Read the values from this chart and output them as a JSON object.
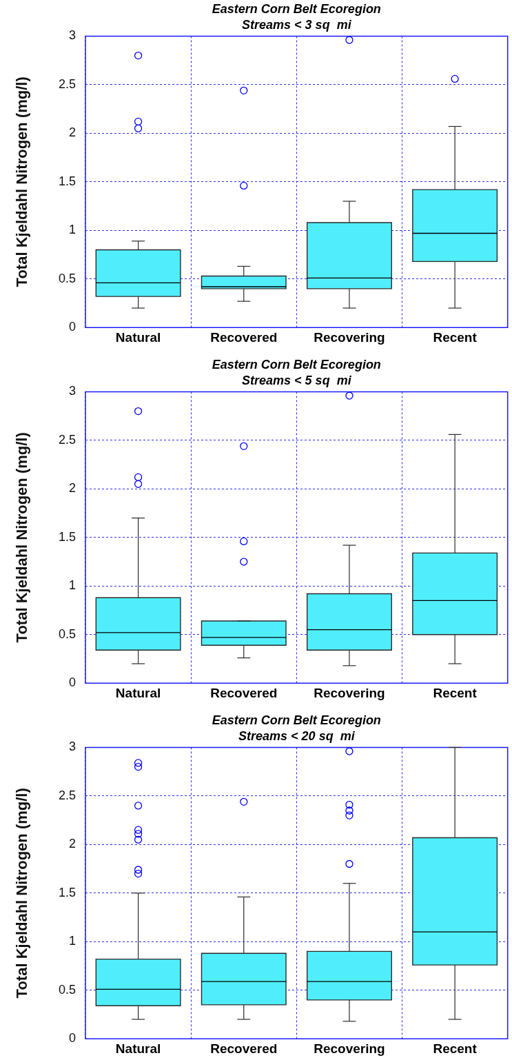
{
  "chart_data": [
    {
      "type": "box",
      "title": "Eastern Corn Belt Ecoregion",
      "subtitle": "Streams < 3 sq  mi",
      "ylabel": "Total Kjeldahl Nitrogen (mg/l)",
      "categories": [
        "Natural",
        "Recovered",
        "Recovering",
        "Recent"
      ],
      "color": "#50eefc",
      "boxes": [
        {
          "low": 0.2,
          "q1": 0.32,
          "median": 0.46,
          "q3": 0.8,
          "high": 0.89,
          "outliers": [
            2.8,
            2.12,
            2.05
          ]
        },
        {
          "low": 0.27,
          "q1": 0.4,
          "median": 0.42,
          "q3": 0.53,
          "high": 0.63,
          "outliers": [
            2.44,
            1.46
          ]
        },
        {
          "low": 0.2,
          "q1": 0.4,
          "median": 0.51,
          "q3": 1.08,
          "high": 1.3,
          "outliers": [
            2.96
          ]
        },
        {
          "low": 0.2,
          "q1": 0.68,
          "median": 0.97,
          "q3": 1.42,
          "high": 2.07,
          "outliers": [
            2.56
          ]
        }
      ],
      "ylim": [
        0,
        3
      ],
      "yticks": [
        0,
        0.5,
        1,
        1.5,
        2,
        2.5,
        3
      ],
      "grid": true
    },
    {
      "type": "box",
      "title": "Eastern Corn Belt Ecoregion",
      "subtitle": "Streams < 5 sq  mi",
      "ylabel": "Total Kjeldahl Nitrogen (mg/l)",
      "categories": [
        "Natural",
        "Recovered",
        "Recovering",
        "Recent"
      ],
      "color": "#50eefc",
      "boxes": [
        {
          "low": 0.2,
          "q1": 0.34,
          "median": 0.52,
          "q3": 0.88,
          "high": 1.7,
          "outliers": [
            2.8,
            2.12,
            2.05
          ]
        },
        {
          "low": 0.26,
          "q1": 0.39,
          "median": 0.47,
          "q3": 0.64,
          "high": 0.64,
          "outliers": [
            2.44,
            1.46,
            1.25
          ]
        },
        {
          "low": 0.18,
          "q1": 0.34,
          "median": 0.55,
          "q3": 0.92,
          "high": 1.42,
          "outliers": [
            2.96
          ]
        },
        {
          "low": 0.2,
          "q1": 0.5,
          "median": 0.85,
          "q3": 1.34,
          "high": 2.56
        }
      ],
      "ylim": [
        0,
        3
      ],
      "yticks": [
        0,
        0.5,
        1,
        1.5,
        2,
        2.5,
        3
      ],
      "grid": true
    },
    {
      "type": "box",
      "title": "Eastern Corn Belt Ecoregion",
      "subtitle": "Streams < 20 sq  mi",
      "ylabel": "Total Kjeldahl Nitrogen (mg/l)",
      "categories": [
        "Natural",
        "Recovered",
        "Recovering",
        "Recent"
      ],
      "color": "#50eefc",
      "boxes": [
        {
          "low": 0.2,
          "q1": 0.34,
          "median": 0.51,
          "q3": 0.82,
          "high": 1.5,
          "outliers": [
            2.84,
            2.8,
            2.4,
            2.15,
            2.11,
            2.05,
            1.74,
            1.7
          ]
        },
        {
          "low": 0.2,
          "q1": 0.35,
          "median": 0.59,
          "q3": 0.88,
          "high": 1.46,
          "outliers": [
            2.44
          ]
        },
        {
          "low": 0.18,
          "q1": 0.4,
          "median": 0.59,
          "q3": 0.9,
          "high": 1.6,
          "outliers": [
            2.96,
            2.41,
            2.35,
            2.3,
            1.8
          ]
        },
        {
          "low": 0.2,
          "q1": 0.76,
          "median": 1.1,
          "q3": 2.07,
          "high": 3
        }
      ],
      "ylim": [
        0,
        3
      ],
      "yticks": [
        0,
        0.5,
        1,
        1.5,
        2,
        2.5,
        3
      ],
      "grid": true
    }
  ]
}
